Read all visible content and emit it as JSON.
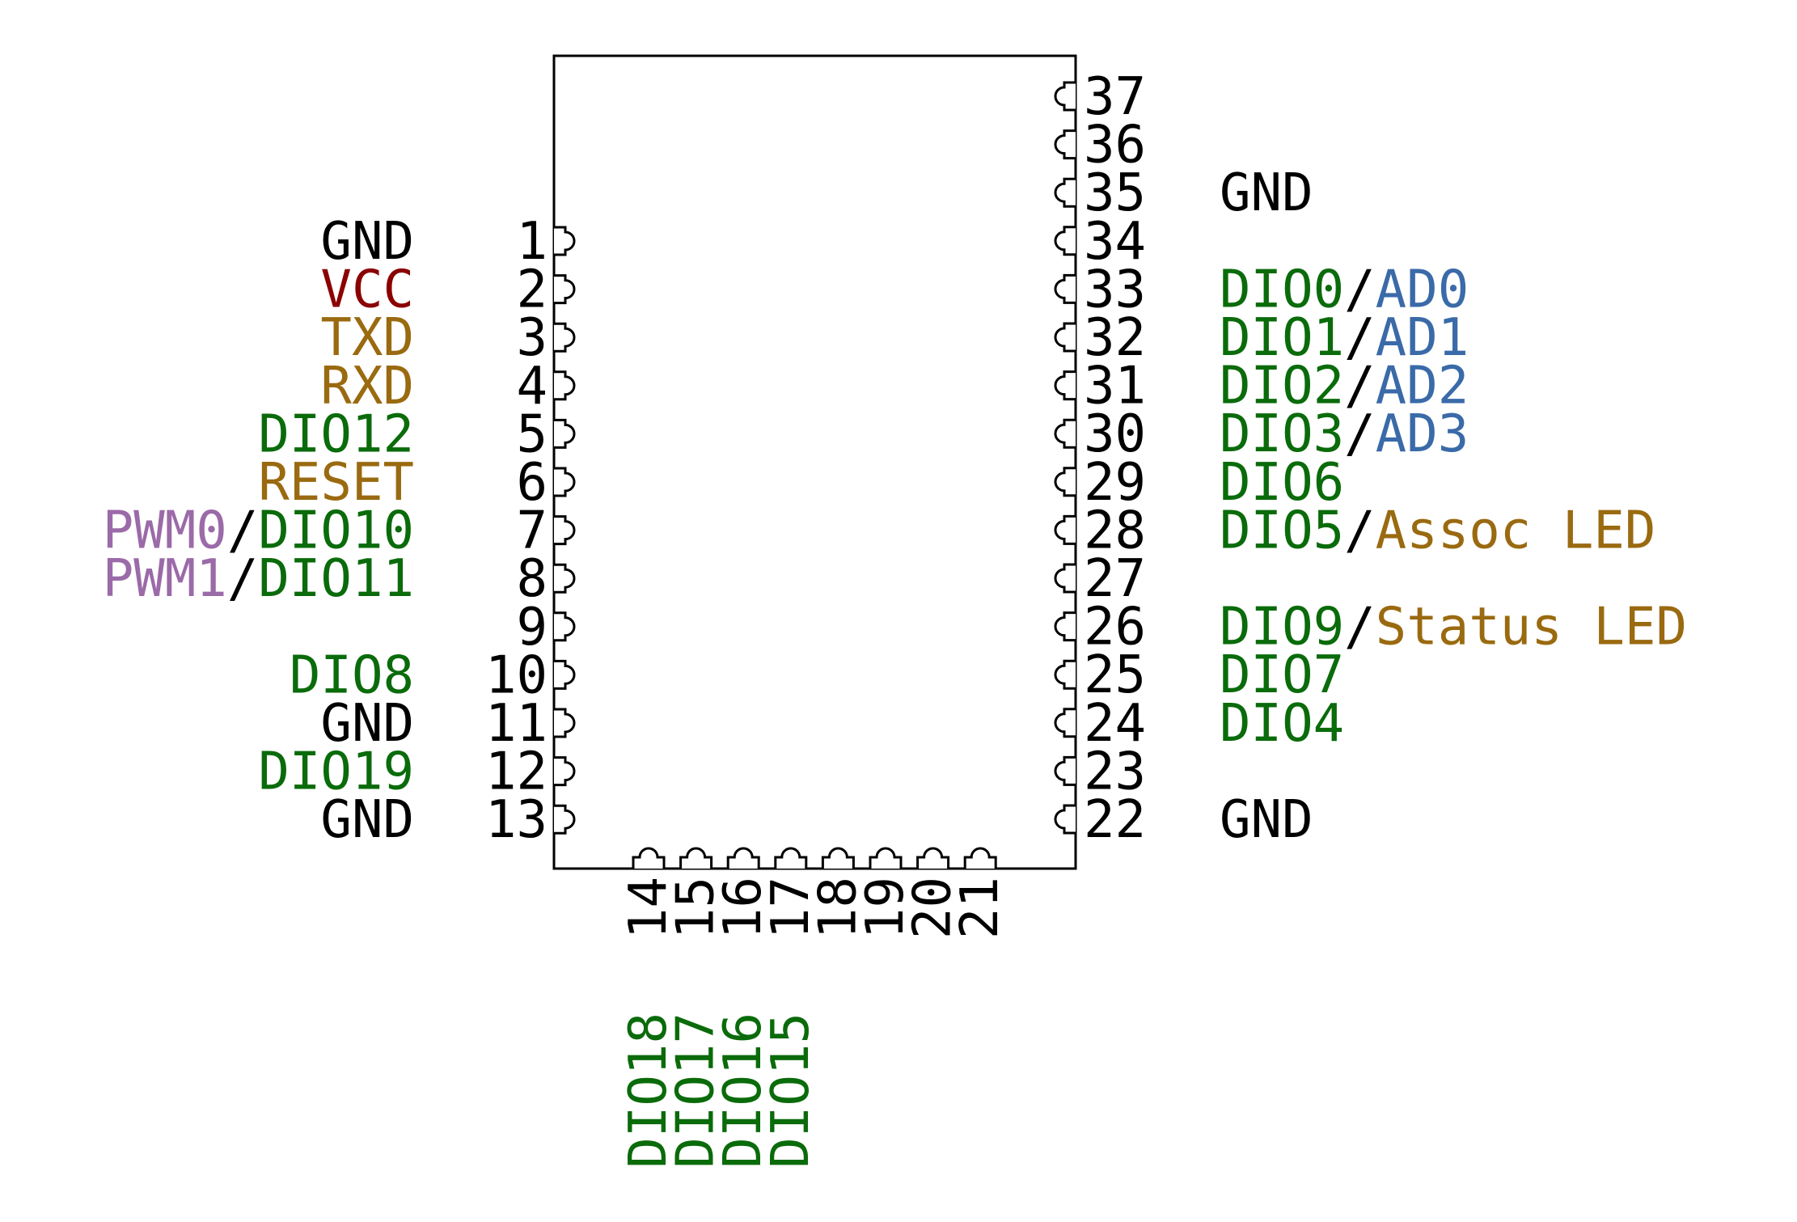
{
  "colors": {
    "ground": "#000000",
    "power": "#8b0000",
    "control": "#9a6a10",
    "dio": "#0a6b0a",
    "analog": "#3a6aa8",
    "pwm": "#9b6aa8",
    "outline": "#000000"
  },
  "left_pins": [
    {
      "number": "1",
      "labels": [
        {
          "text": "GND",
          "role": "ground"
        }
      ]
    },
    {
      "number": "2",
      "labels": [
        {
          "text": "VCC",
          "role": "power"
        }
      ]
    },
    {
      "number": "3",
      "labels": [
        {
          "text": "TXD",
          "role": "control"
        }
      ]
    },
    {
      "number": "4",
      "labels": [
        {
          "text": "RXD",
          "role": "control"
        }
      ]
    },
    {
      "number": "5",
      "labels": [
        {
          "text": "DIO12",
          "role": "dio"
        }
      ]
    },
    {
      "number": "6",
      "labels": [
        {
          "text": "RESET",
          "role": "control"
        }
      ]
    },
    {
      "number": "7",
      "labels": [
        {
          "text": "PWM0",
          "role": "pwm"
        },
        {
          "text": "/",
          "role": "ground"
        },
        {
          "text": "DIO10",
          "role": "dio"
        }
      ]
    },
    {
      "number": "8",
      "labels": [
        {
          "text": "PWM1",
          "role": "pwm"
        },
        {
          "text": "/",
          "role": "ground"
        },
        {
          "text": "DIO11",
          "role": "dio"
        }
      ]
    },
    {
      "number": "9",
      "labels": []
    },
    {
      "number": "10",
      "labels": [
        {
          "text": "DIO8",
          "role": "dio"
        }
      ]
    },
    {
      "number": "11",
      "labels": [
        {
          "text": "GND",
          "role": "ground"
        }
      ]
    },
    {
      "number": "12",
      "labels": [
        {
          "text": "DIO19",
          "role": "dio"
        }
      ]
    },
    {
      "number": "13",
      "labels": [
        {
          "text": "GND",
          "role": "ground"
        }
      ]
    }
  ],
  "right_pins": [
    {
      "number": "37",
      "labels": []
    },
    {
      "number": "36",
      "labels": []
    },
    {
      "number": "35",
      "labels": [
        {
          "text": "GND",
          "role": "ground"
        }
      ]
    },
    {
      "number": "34",
      "labels": []
    },
    {
      "number": "33",
      "labels": [
        {
          "text": "DIO0",
          "role": "dio"
        },
        {
          "text": "/",
          "role": "ground"
        },
        {
          "text": "AD0",
          "role": "analog"
        }
      ]
    },
    {
      "number": "32",
      "labels": [
        {
          "text": "DIO1",
          "role": "dio"
        },
        {
          "text": "/",
          "role": "ground"
        },
        {
          "text": "AD1",
          "role": "analog"
        }
      ]
    },
    {
      "number": "31",
      "labels": [
        {
          "text": "DIO2",
          "role": "dio"
        },
        {
          "text": "/",
          "role": "ground"
        },
        {
          "text": "AD2",
          "role": "analog"
        }
      ]
    },
    {
      "number": "30",
      "labels": [
        {
          "text": "DIO3",
          "role": "dio"
        },
        {
          "text": "/",
          "role": "ground"
        },
        {
          "text": "AD3",
          "role": "analog"
        }
      ]
    },
    {
      "number": "29",
      "labels": [
        {
          "text": "DIO6",
          "role": "dio"
        }
      ]
    },
    {
      "number": "28",
      "labels": [
        {
          "text": "DIO5",
          "role": "dio"
        },
        {
          "text": "/",
          "role": "ground"
        },
        {
          "text": "Assoc LED",
          "role": "control"
        }
      ]
    },
    {
      "number": "27",
      "labels": []
    },
    {
      "number": "26",
      "labels": [
        {
          "text": "DIO9",
          "role": "dio"
        },
        {
          "text": "/",
          "role": "ground"
        },
        {
          "text": "Status LED",
          "role": "control"
        }
      ]
    },
    {
      "number": "25",
      "labels": [
        {
          "text": "DIO7",
          "role": "dio"
        }
      ]
    },
    {
      "number": "24",
      "labels": [
        {
          "text": "DIO4",
          "role": "dio"
        }
      ]
    },
    {
      "number": "23",
      "labels": []
    },
    {
      "number": "22",
      "labels": [
        {
          "text": "GND",
          "role": "ground"
        }
      ]
    }
  ],
  "bottom_pins": [
    {
      "number": "14",
      "labels": [
        {
          "text": "DIO18",
          "role": "dio"
        }
      ]
    },
    {
      "number": "15",
      "labels": [
        {
          "text": "DIO17",
          "role": "dio"
        }
      ]
    },
    {
      "number": "16",
      "labels": [
        {
          "text": "DIO16",
          "role": "dio"
        }
      ]
    },
    {
      "number": "17",
      "labels": [
        {
          "text": "DIO15",
          "role": "dio"
        }
      ]
    },
    {
      "number": "18",
      "labels": []
    },
    {
      "number": "19",
      "labels": []
    },
    {
      "number": "20",
      "labels": []
    },
    {
      "number": "21",
      "labels": []
    }
  ]
}
